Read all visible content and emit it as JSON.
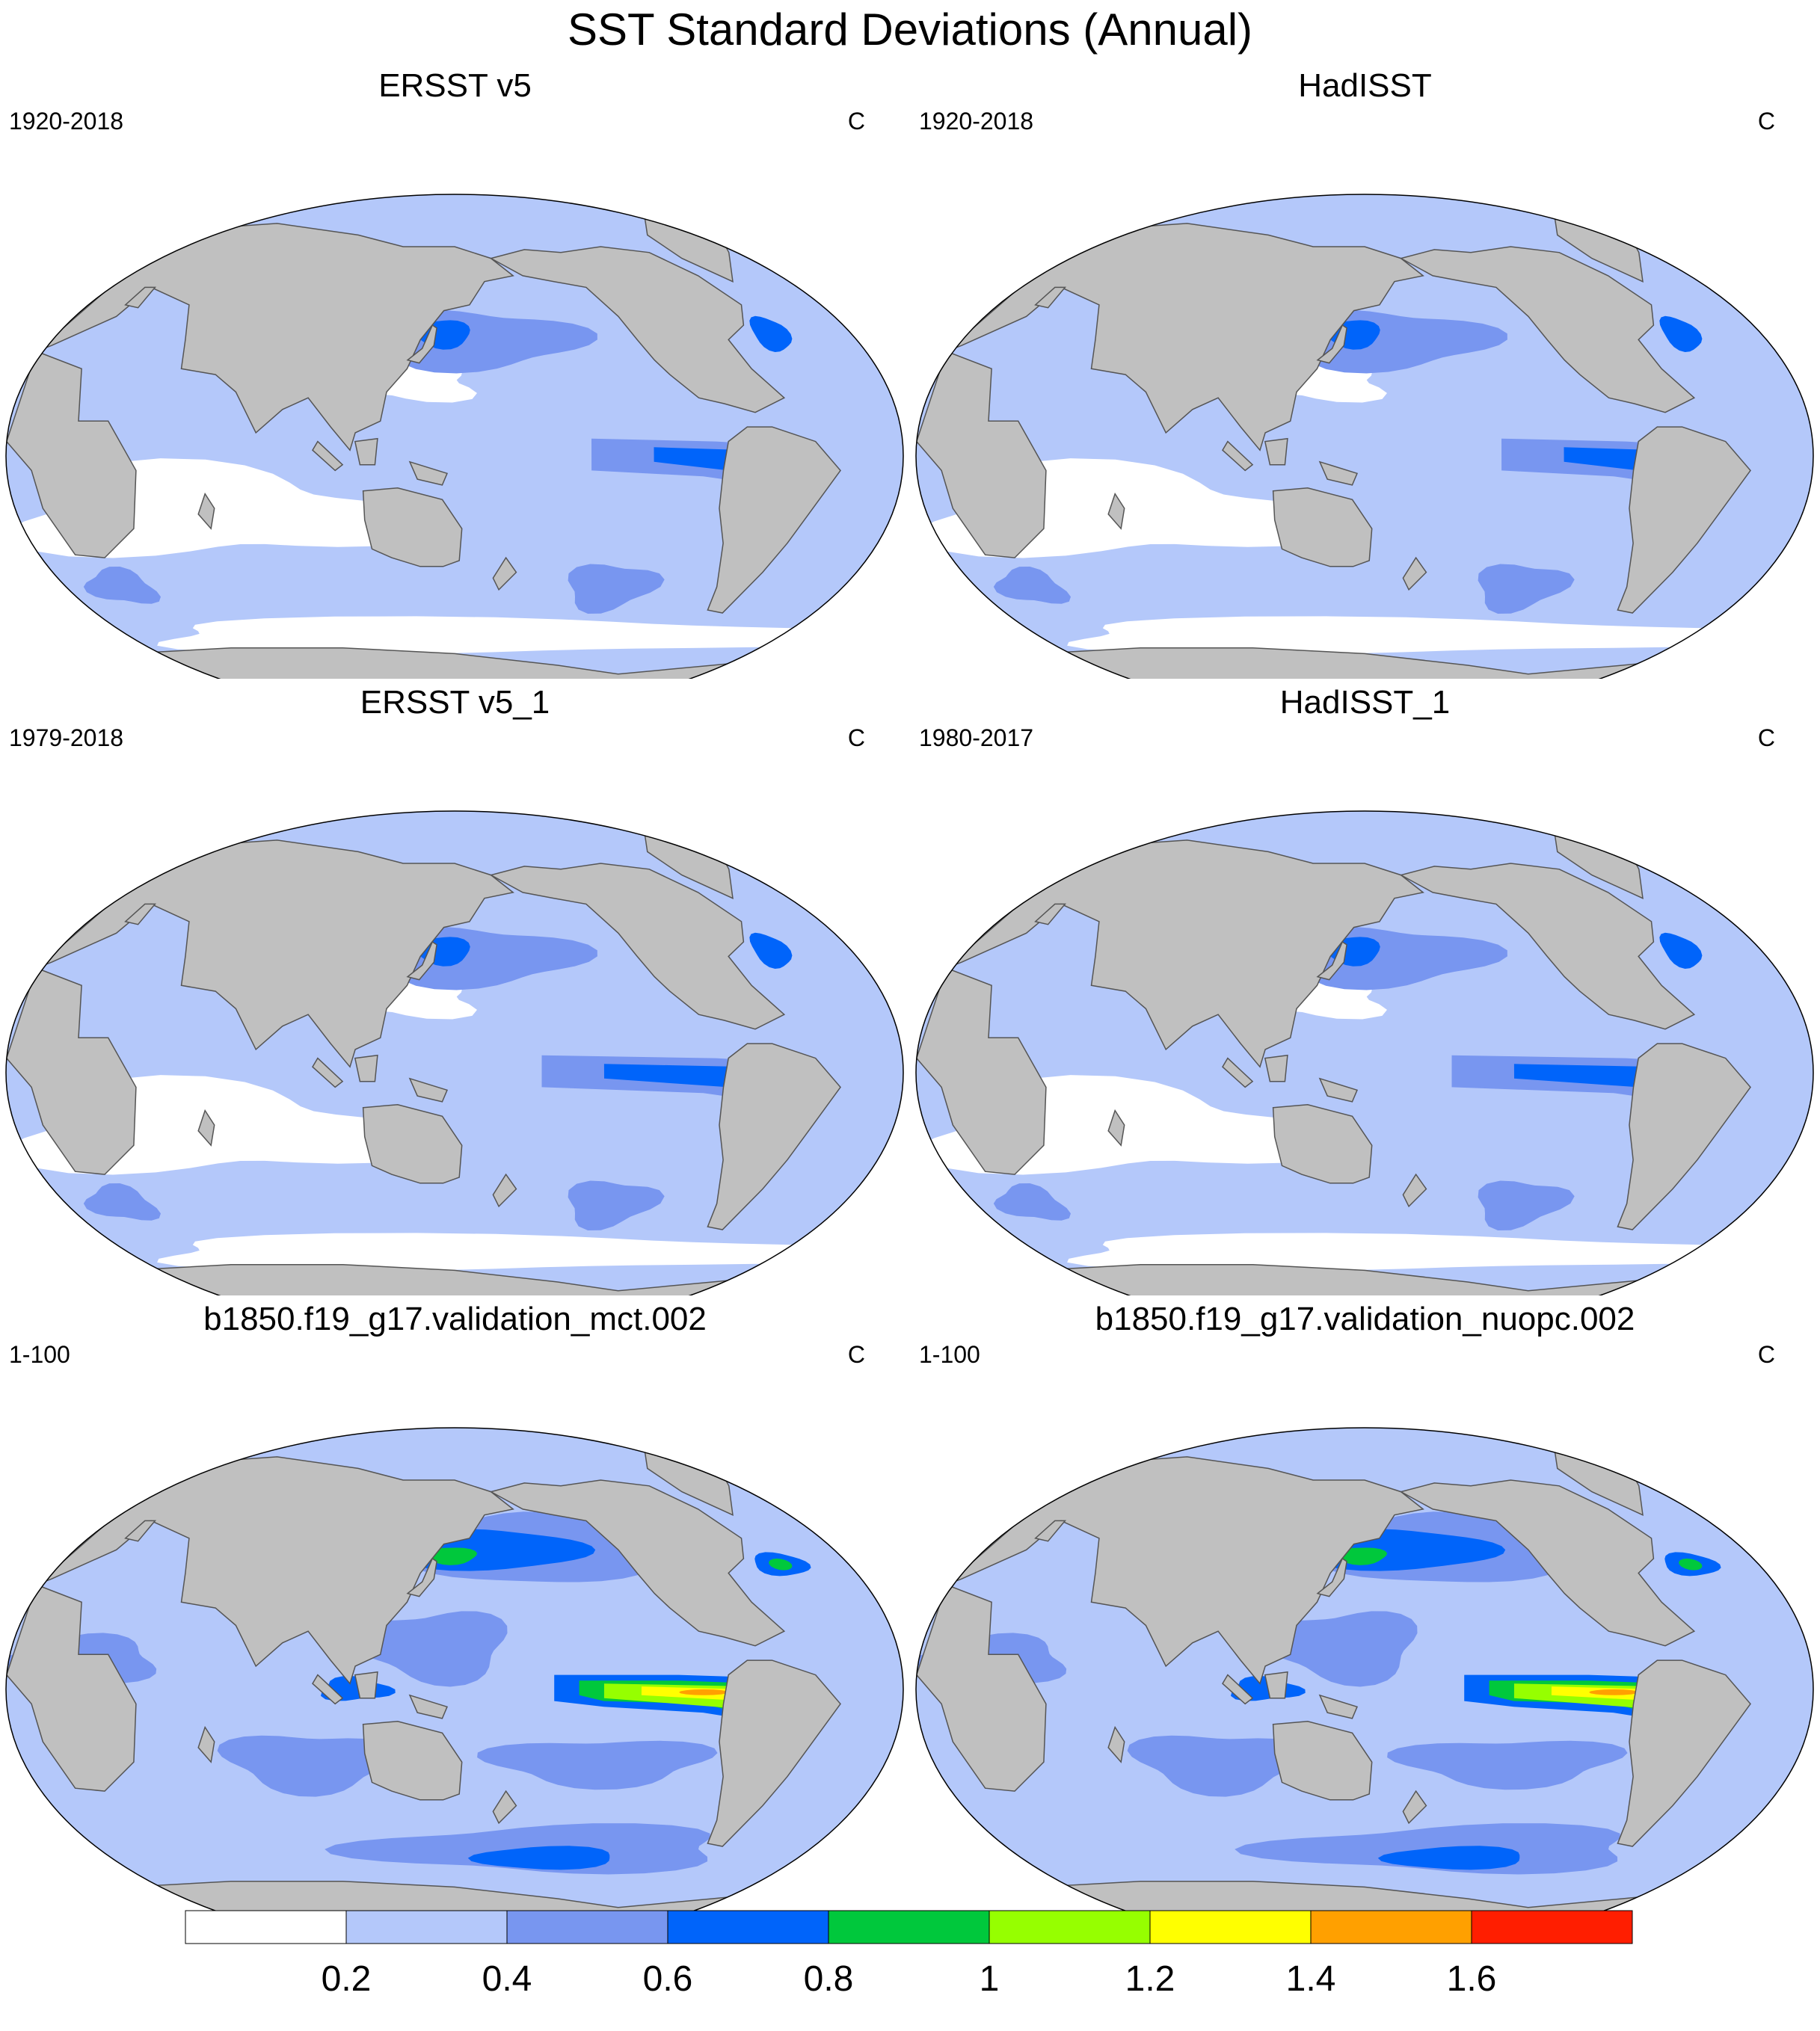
{
  "title": "SST Standard Deviations (Annual)",
  "panels": [
    {
      "title": "ERSST v5",
      "period": "1920-2018",
      "units": "C",
      "variant": 1
    },
    {
      "title": "HadISST",
      "period": "1920-2018",
      "units": "C",
      "variant": 1
    },
    {
      "title": "ERSST v5_1",
      "period": "1979-2018",
      "units": "C",
      "variant": 2
    },
    {
      "title": "HadISST_1",
      "period": "1980-2017",
      "units": "C",
      "variant": 2
    },
    {
      "title": "b1850.f19_g17.validation_mct.002",
      "period": "1-100",
      "units": "C",
      "variant": 3
    },
    {
      "title": "b1850.f19_g17.validation_nuopc.002",
      "period": "1-100",
      "units": "C",
      "variant": 3
    }
  ],
  "colorbar": {
    "colors": [
      "#ffffff",
      "#b4c8fa",
      "#7896f0",
      "#0064fa",
      "#00c83c",
      "#96ff00",
      "#ffff00",
      "#ffa000",
      "#ff1e00"
    ],
    "labels": [
      "0.2",
      "0.4",
      "0.6",
      "0.8",
      "1",
      "1.2",
      "1.4",
      "1.6"
    ]
  },
  "colors": {
    "land": "#c0c0c0",
    "coastline": "#555555",
    "frame": "#000000"
  }
}
